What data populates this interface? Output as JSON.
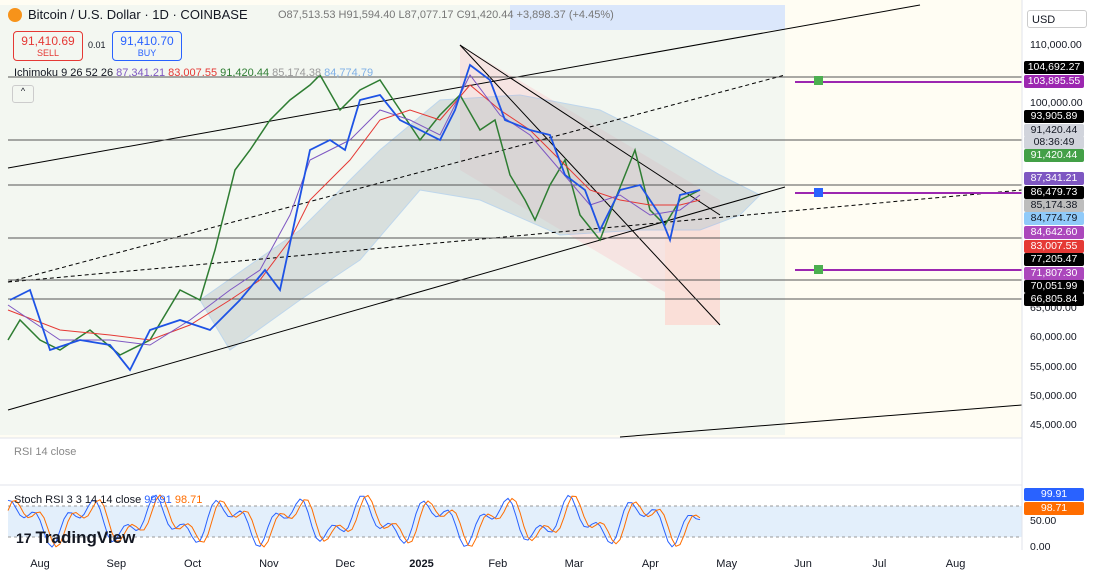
{
  "header": {
    "symbol": "Bitcoin / U.S. Dollar · 1D · COINBASE",
    "ohlc": "O87,513.53 H91,594.40 L87,077.17 C91,420.44 +3,898.37 (+4.45%)",
    "sell_price": "91,410.69",
    "sell": "SELL",
    "spread": "0.01",
    "buy_price": "91,410.70",
    "buy": "BUY",
    "currency": "USD"
  },
  "ichimoku": {
    "name": "Ichimoku 9 26 52 26",
    "values": [
      "87,341.21",
      "83,007.55",
      "91,420.44",
      "85,174.38",
      "84,774.79"
    ]
  },
  "price_axis": {
    "ticks": [
      {
        "value": 110000,
        "label": "110,000.00"
      },
      {
        "value": 100000,
        "label": "100,000.00"
      },
      {
        "value": 65000,
        "label": "65,000.00"
      },
      {
        "value": 60000,
        "label": "60,000.00"
      },
      {
        "value": 55000,
        "label": "55,000.00"
      },
      {
        "value": 50000,
        "label": "50,000.00"
      },
      {
        "value": 45000,
        "label": "45,000.00"
      }
    ],
    "tags": [
      "104,692.27",
      "103,895.55",
      "93,905.89",
      "91,420.44",
      "08:36:49",
      "91,420.44",
      "87,341.21",
      "86,479.73",
      "85,174.38",
      "84,774.79",
      "84,642.60",
      "83,007.55",
      "77,205.47",
      "71,807.30",
      "70,051.99",
      "66,805.84"
    ]
  },
  "time_axis": [
    "Aug",
    "Sep",
    "Oct",
    "Nov",
    "Dec",
    "2025",
    "Feb",
    "Mar",
    "Apr",
    "May",
    "Jun",
    "Jul",
    "Aug"
  ],
  "rsi": {
    "name": "RSI 14 close"
  },
  "stoch": {
    "name": "Stoch RSI 3 3 14 14 close",
    "k": "99.91",
    "d": "98.71",
    "ticks": [
      "50.00",
      "0.00"
    ]
  },
  "branding": "TradingView"
}
